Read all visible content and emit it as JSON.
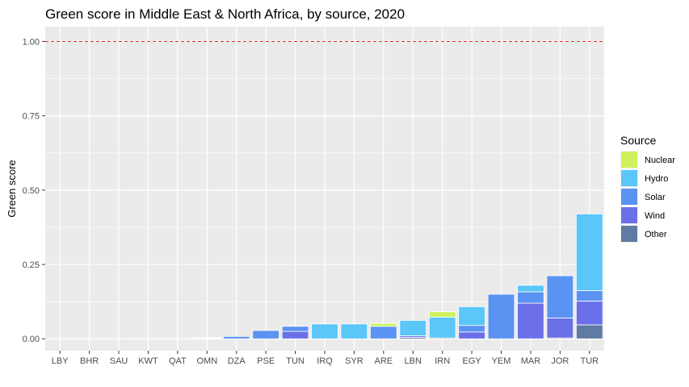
{
  "chart_data": {
    "type": "bar",
    "stacked": true,
    "title": "Green score in Middle East & North Africa, by source, 2020",
    "xlabel": "",
    "ylabel": "Green score",
    "ylim": [
      -0.04,
      1.05
    ],
    "yticks": [
      "0.00",
      "0.25",
      "0.50",
      "0.75",
      "1.00"
    ],
    "reference_line": {
      "y": 1.0,
      "style": "dashed",
      "color": "#e0312f"
    },
    "grid": true,
    "legend_position": "right",
    "legend_title": "Source",
    "categories": [
      "LBY",
      "BHR",
      "SAU",
      "KWT",
      "QAT",
      "OMN",
      "DZA",
      "PSE",
      "TUN",
      "IRQ",
      "SYR",
      "ARE",
      "LBN",
      "IRN",
      "EGY",
      "YEM",
      "MAR",
      "JOR",
      "TUR"
    ],
    "series": [
      {
        "name": "Other",
        "color": "#5f7aa3",
        "values": [
          0,
          0,
          0,
          0,
          0,
          0,
          0,
          0,
          0,
          0,
          0,
          0,
          0.005,
          0.003,
          0,
          0,
          0,
          0.003,
          0.047
        ]
      },
      {
        "name": "Wind",
        "color": "#6b6fe8",
        "values": [
          0,
          0,
          0,
          0,
          0,
          0,
          0,
          0,
          0.025,
          0,
          0,
          0,
          0.005,
          0,
          0.023,
          0,
          0.12,
          0.067,
          0.08
        ]
      },
      {
        "name": "Solar",
        "color": "#5b93f2",
        "values": [
          0,
          0,
          0,
          0,
          0,
          0.002,
          0.008,
          0.028,
          0.017,
          0,
          0,
          0.042,
          0,
          0,
          0.022,
          0.15,
          0.038,
          0.142,
          0.035
        ]
      },
      {
        "name": "Hydro",
        "color": "#5bc6f8",
        "values": [
          0,
          0,
          0,
          0,
          0,
          0.002,
          0,
          0,
          0,
          0.05,
          0.05,
          0,
          0.052,
          0.07,
          0.063,
          0,
          0.022,
          0,
          0.258
        ]
      },
      {
        "name": "Nuclear",
        "color": "#cdf25c",
        "values": [
          0,
          0,
          0,
          0,
          0,
          0,
          0,
          0,
          0,
          0,
          0,
          0.01,
          0,
          0.018,
          0,
          0,
          0,
          0,
          0
        ]
      }
    ],
    "legend_order": [
      "Nuclear",
      "Hydro",
      "Solar",
      "Wind",
      "Other"
    ]
  }
}
